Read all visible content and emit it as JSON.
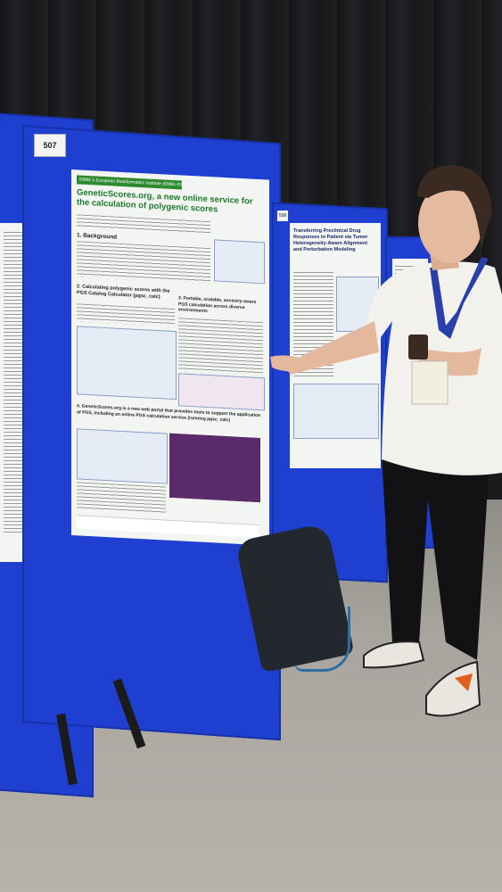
{
  "scene": {
    "board_number": "507",
    "board_number_2": "508"
  },
  "poster": {
    "header_strip": "EMBL's European Bioinformatics Institute (EMBL-EBI)",
    "title": "GeneticScores.org, a new online service for the calculation of polygenic scores",
    "sections": [
      "1. Background",
      "2. Calculating polygenic scores with the PGS Catalog Calculator (pgsc_calc)",
      "3. Portable, scalable, ancestry-aware PGS calculation across diverse environments",
      "4. GeneticScores.org is a new web portal that provides tools to support the application of PGS, including an online PGS calculation service (running pgsc_calc)"
    ]
  },
  "poster_mid": {
    "title": "Transferring Preclinical Drug Responses to Patient via Tumor Heterogeneity-Aware Alignment and Perturbation Modeling"
  },
  "colors": {
    "board": "#1f3fd0",
    "poster_title": "#1e7a2a"
  }
}
